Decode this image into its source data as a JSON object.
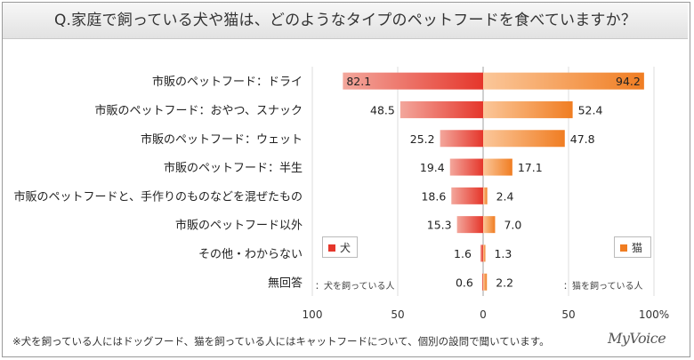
{
  "title": "Q.家庭で飼っている犬や猫は、どのようなタイプのペットフードを食べていますか？",
  "footnote": "※犬を飼っている人にはドッグフード、猫を飼っている人にはキャットフードについて、個別の設問で聞いています。",
  "logo": "MyVoice",
  "legend": {
    "dog_label": "犬",
    "cat_label": "猫",
    "dog_note": "：犬を飼っている人",
    "cat_note": "：猫を飼っている人"
  },
  "colors": {
    "dog_light": "#f3a79c",
    "dog_dark": "#e5362b",
    "cat_light": "#fbc79a",
    "cat_dark": "#f07d22",
    "grid": "#dcdcdc",
    "axis": "#a0a0a0"
  },
  "chart_data": {
    "type": "bar",
    "orientation": "horizontal-butterfly",
    "categories": [
      "市販のペットフード：ドライ",
      "市販のペットフード：おやつ、スナック",
      "市販のペットフード：ウェット",
      "市販のペットフード：半生",
      "市販のペットフードと、手作りのものなどを混ぜたもの",
      "市販のペットフード以外",
      "その他・わからない",
      "無回答"
    ],
    "series": [
      {
        "name": "犬",
        "values": [
          82.1,
          48.5,
          25.2,
          19.4,
          18.6,
          15.3,
          1.6,
          0.6
        ]
      },
      {
        "name": "猫",
        "values": [
          94.2,
          52.4,
          47.8,
          17.1,
          2.4,
          7.0,
          1.3,
          2.2
        ]
      }
    ],
    "xlim": [
      -100,
      100
    ],
    "ticks": [
      "100",
      "50",
      "0",
      "50",
      "100%"
    ],
    "grid": true,
    "legend_position": "bottom-inside"
  }
}
